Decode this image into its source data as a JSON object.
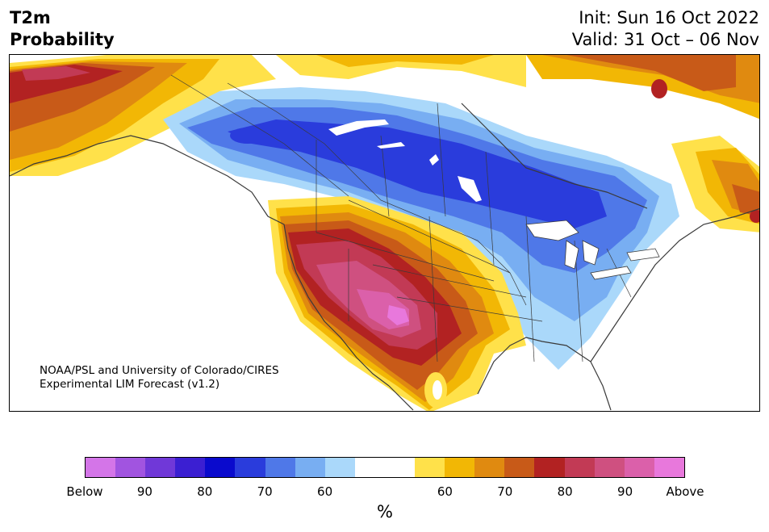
{
  "header": {
    "title_line1": "T2m",
    "title_line2": "Probability",
    "init_text": "Init: Sun 16 Oct 2022",
    "valid_text": "Valid: 31 Oct – 06 Nov"
  },
  "map": {
    "credit_line1": "NOAA/PSL and University of Colorado/CIRES",
    "credit_line2": "Experimental LIM Forecast (v1.2)"
  },
  "colorbar": {
    "colors": [
      "#d475e8",
      "#a154e0",
      "#7038d8",
      "#3b1fd2",
      "#0a0acd",
      "#2a3cdc",
      "#4f78e8",
      "#78aef2",
      "#aad8fa",
      "#ffffff",
      "#ffffff",
      "#ffe14a",
      "#f2b705",
      "#e08a10",
      "#c85a18",
      "#b22222",
      "#c23a55",
      "#cf5080",
      "#db60aa",
      "#e878dc"
    ],
    "labels": [
      "Below",
      "90",
      "80",
      "70",
      "60",
      "60",
      "70",
      "80",
      "90",
      "Above"
    ],
    "unit": "%"
  }
}
